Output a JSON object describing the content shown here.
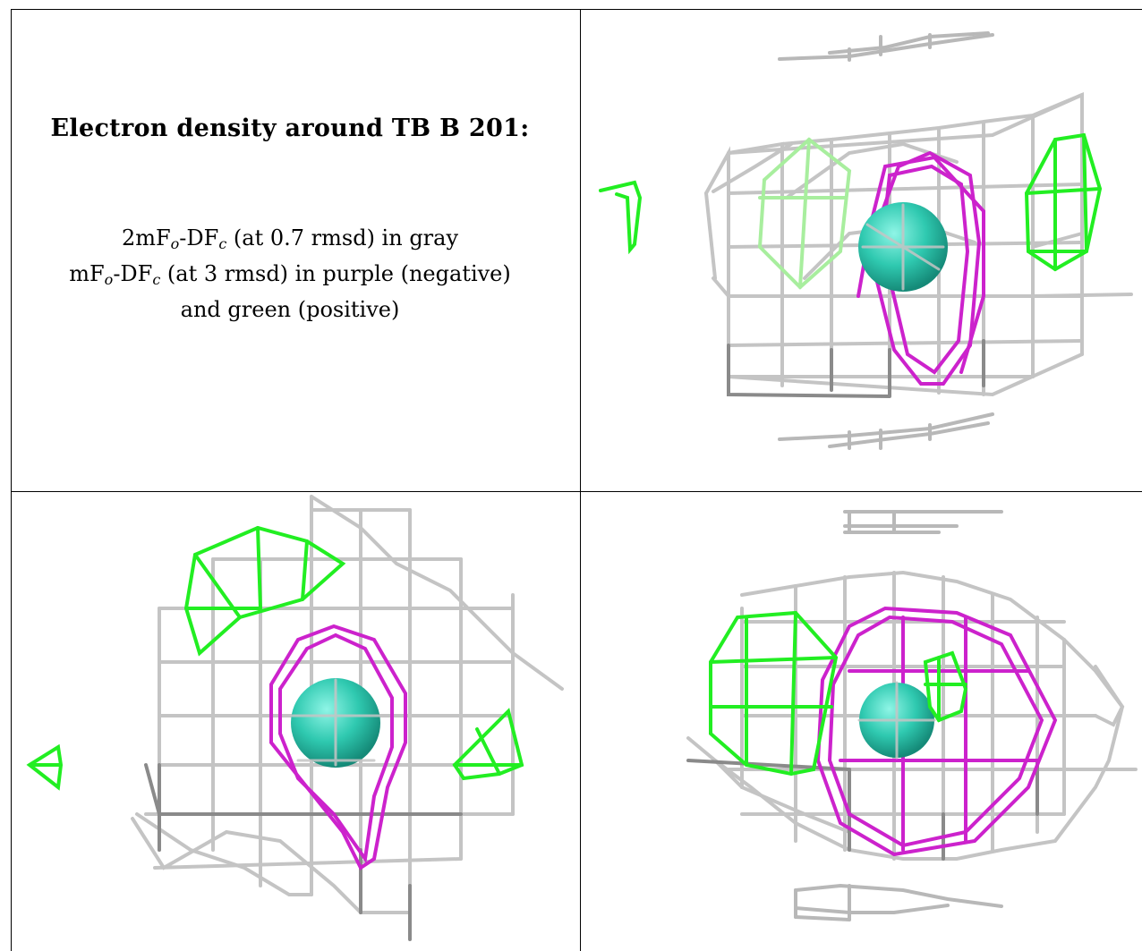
{
  "caption": {
    "title": "Electron density around TB B 201:",
    "line1": {
      "pre": "2mF",
      "sub1": "o",
      "mid": "-DF",
      "sub2": "c",
      "post": " (at 0.7 rmsd) in gray"
    },
    "line2": {
      "pre": "mF",
      "sub1": "o",
      "mid": "-DF",
      "sub2": "c",
      "post": " (at 3 rmsd) in purple (negative)"
    },
    "line3": "and green (positive)"
  },
  "colors": {
    "gray_mesh": "#c4c4c4",
    "gray_mesh_dark": "#8a8a8a",
    "negative_mesh": "#cc22cc",
    "positive_mesh": "#22ee22",
    "atom": "#2fc9b0"
  },
  "panels": [
    {
      "id": "view-top-right",
      "content": "mesh render"
    },
    {
      "id": "view-bottom-left",
      "content": "mesh render"
    },
    {
      "id": "view-bottom-right",
      "content": "mesh render"
    }
  ]
}
